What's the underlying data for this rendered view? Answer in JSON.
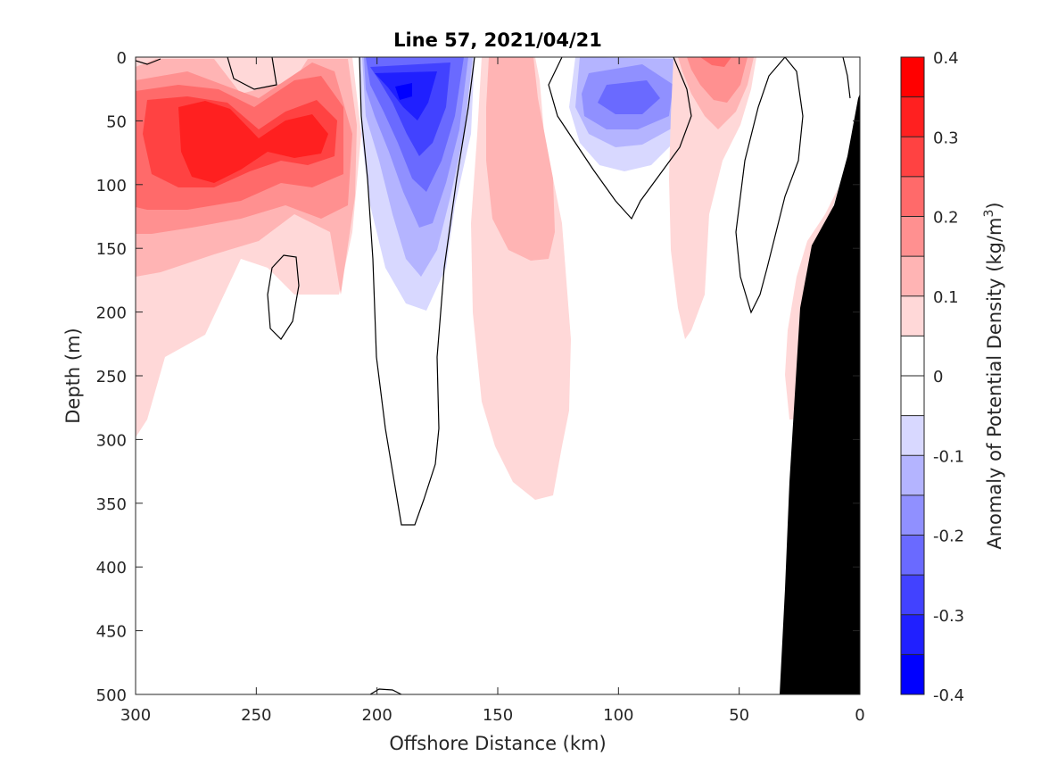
{
  "chart_data": {
    "type": "contourf",
    "title": "Line 57, 2021/04/21",
    "xlabel": "Offshore Distance (km)",
    "ylabel": "Depth (m)",
    "xlim": [
      300,
      0
    ],
    "ylim": [
      500,
      0
    ],
    "x_reversed": true,
    "y_reversed": true,
    "x_ticks": [
      "300",
      "250",
      "200",
      "150",
      "100",
      "50",
      "0"
    ],
    "y_ticks": [
      "0",
      "50",
      "100",
      "150",
      "200",
      "250",
      "300",
      "350",
      "400",
      "450",
      "500"
    ],
    "colorbar": {
      "label": "Anomaly of Potential Density",
      "units_base": "(kg/m",
      "units_exp": "3",
      "units_close": ")",
      "ticks": [
        "0.4",
        "0.3",
        "0.2",
        "0.1",
        "0",
        "-0.1",
        "-0.2",
        "-0.3",
        "-0.4"
      ],
      "colors": [
        "#ff0000",
        "#ff2020",
        "#ff4242",
        "#ff6a6a",
        "#ff9090",
        "#ffb4b4",
        "#ffd8d8",
        "#ffffff",
        "#ffffff",
        "#d8d8ff",
        "#b4b4ff",
        "#9090ff",
        "#6a6aff",
        "#4242ff",
        "#2020ff",
        "#0000ff"
      ]
    },
    "features": [
      {
        "name": "positive anomaly core",
        "x_km": 270,
        "depth_m": 60,
        "value": 0.35
      },
      {
        "name": "positive anomaly",
        "x_km": 228,
        "depth_m": 60,
        "value": 0.3
      },
      {
        "name": "negative anomaly core",
        "x_km": 188,
        "depth_m": 30,
        "value": -0.35
      },
      {
        "name": "negative anomaly",
        "x_km": 95,
        "depth_m": 35,
        "value": -0.2
      },
      {
        "name": "positive anomaly",
        "x_km": 140,
        "depth_m": 150,
        "value": 0.15
      },
      {
        "name": "positive anomaly",
        "x_km": 60,
        "depth_m": 30,
        "value": 0.25
      }
    ],
    "bathymetry": {
      "color": "#000000",
      "shelf_km": [
        33,
        0
      ]
    }
  }
}
